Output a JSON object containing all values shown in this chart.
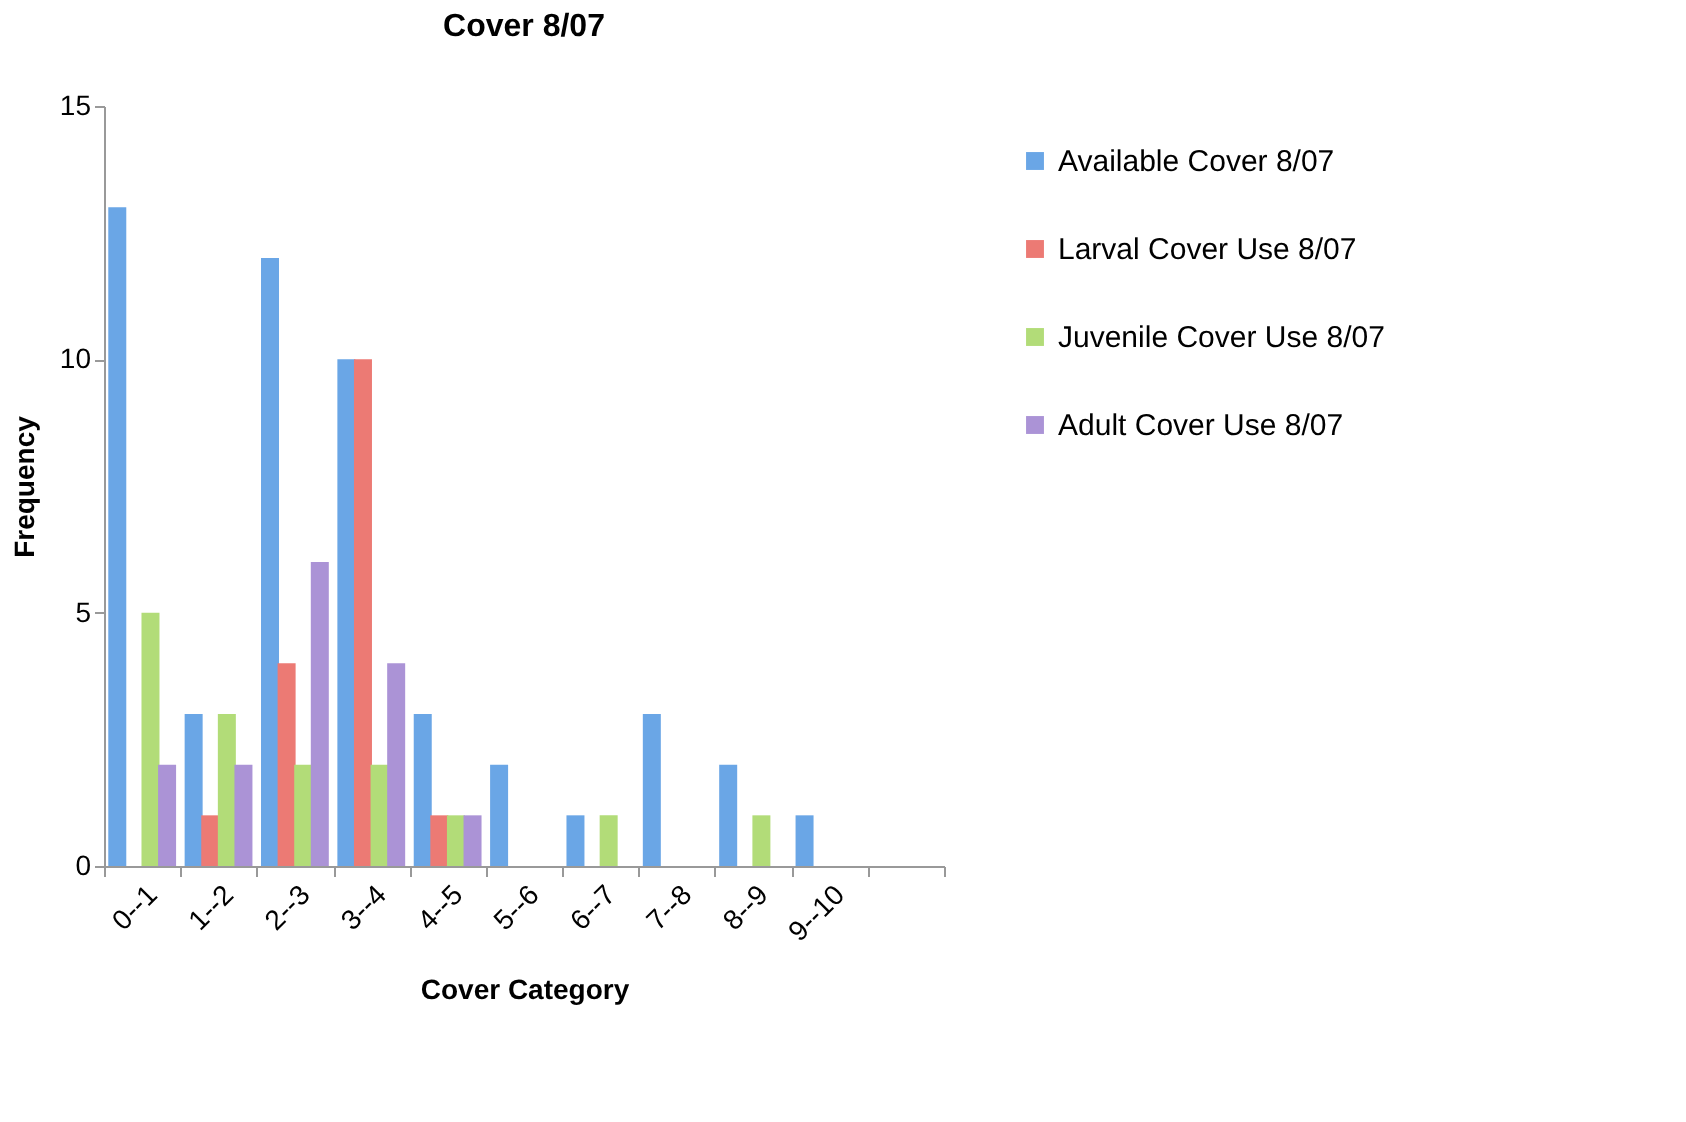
{
  "chart_data": {
    "type": "bar",
    "title": "Cover 8/07",
    "xlabel": "Cover Category",
    "ylabel": "Frequency",
    "categories": [
      "0--1",
      "1--2",
      "2--3",
      "3--4",
      "4--5",
      "5--6",
      "6--7",
      "7--8",
      "8--9",
      "9--10",
      null
    ],
    "series": [
      {
        "name": "Available Cover 8/07",
        "color": "#6aa6e6",
        "values": [
          13,
          3,
          12,
          10,
          3,
          2,
          1,
          3,
          2,
          1,
          null
        ]
      },
      {
        "name": "Larval Cover Use 8/07",
        "color": "#ec7a74",
        "values": [
          0,
          1,
          4,
          10,
          1,
          0,
          0,
          0,
          0,
          0,
          null
        ]
      },
      {
        "name": "Juvenile Cover Use 8/07",
        "color": "#b2dc78",
        "values": [
          5,
          3,
          2,
          2,
          1,
          0,
          1,
          0,
          1,
          0,
          null
        ]
      },
      {
        "name": "Adult Cover Use 8/07",
        "color": "#ab93d6",
        "values": [
          2,
          2,
          6,
          4,
          1,
          0,
          0,
          0,
          0,
          0,
          null
        ]
      }
    ],
    "ylim": [
      0,
      15
    ],
    "yticks": [
      0,
      5,
      10,
      15
    ],
    "grid": false,
    "legend": "right"
  }
}
